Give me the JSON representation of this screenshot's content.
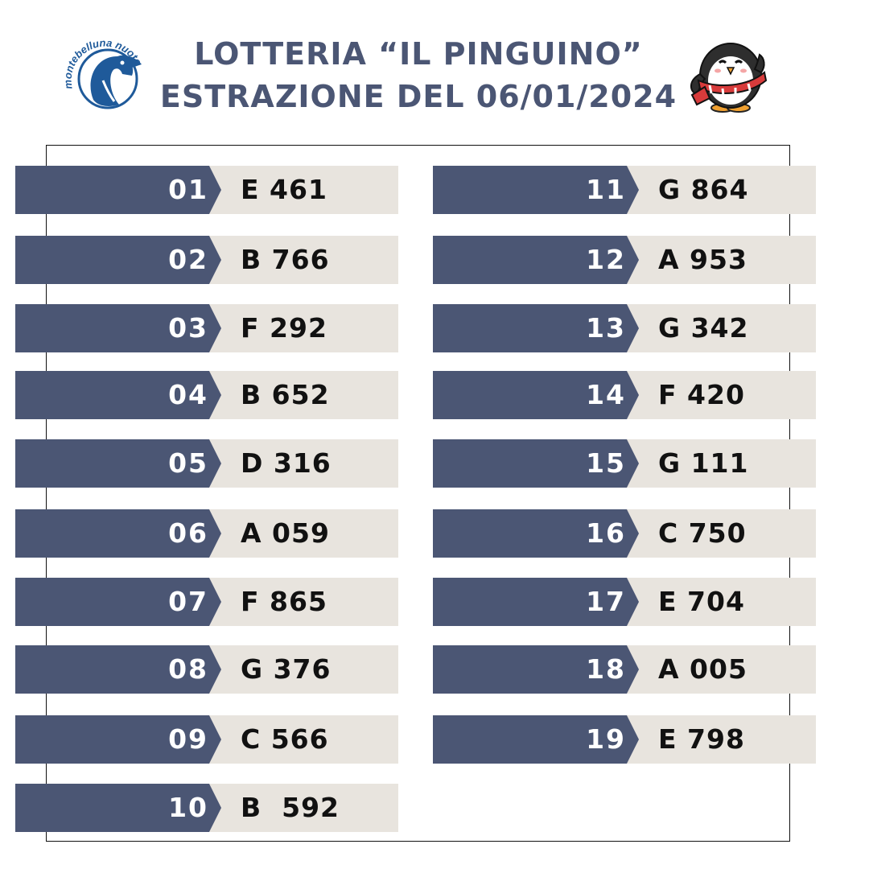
{
  "header": {
    "title_line1": "LOTTERIA “IL PINGUINO”",
    "title_line2": "ESTRAZIONE DEL 06/01/2024",
    "logo_text": "montebelluna nuoto"
  },
  "colors": {
    "primary": "#4b5674",
    "panel": "#e8e4de",
    "text": "#111111"
  },
  "results": [
    {
      "num": "01",
      "code": "E 461"
    },
    {
      "num": "02",
      "code": "B 766"
    },
    {
      "num": "03",
      "code": "F 292"
    },
    {
      "num": "04",
      "code": "B 652"
    },
    {
      "num": "05",
      "code": "D 316"
    },
    {
      "num": "06",
      "code": "A 059"
    },
    {
      "num": "07",
      "code": "F 865"
    },
    {
      "num": "08",
      "code": "G 376"
    },
    {
      "num": "09",
      "code": "C 566"
    },
    {
      "num": "10",
      "code": "B  592"
    },
    {
      "num": "11",
      "code": "G 864"
    },
    {
      "num": "12",
      "code": "A 953"
    },
    {
      "num": "13",
      "code": "G 342"
    },
    {
      "num": "14",
      "code": "F 420"
    },
    {
      "num": "15",
      "code": "G 111"
    },
    {
      "num": "16",
      "code": "C 750"
    },
    {
      "num": "17",
      "code": "E 704"
    },
    {
      "num": "18",
      "code": "A 005"
    },
    {
      "num": "19",
      "code": "E 798"
    }
  ]
}
